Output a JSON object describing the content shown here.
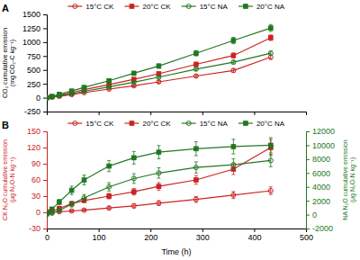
{
  "chart_data": [
    {
      "type": "line",
      "title": "A",
      "y_label": "CO₂ cumulative emission\n(mg CO₂-C kg⁻¹)",
      "x": [
        0,
        10,
        24,
        48,
        72,
        120,
        168,
        216,
        288,
        360,
        432
      ],
      "series": [
        {
          "name": "15°C CK",
          "color": "#cc2222",
          "marker": "open-circle",
          "values": [
            0,
            10,
            25,
            55,
            90,
            155,
            215,
            285,
            390,
            490,
            730
          ],
          "errors": [
            3,
            5,
            8,
            12,
            15,
            18,
            20,
            25,
            28,
            32,
            40
          ]
        },
        {
          "name": "20°C CK",
          "color": "#cc2222",
          "marker": "square",
          "values": [
            0,
            18,
            45,
            90,
            145,
            235,
            330,
            430,
            600,
            760,
            1080
          ],
          "errors": [
            3,
            7,
            10,
            15,
            18,
            22,
            28,
            32,
            38,
            45,
            50
          ]
        },
        {
          "name": "15°C NA",
          "color": "#227722",
          "marker": "open-circle",
          "values": [
            0,
            14,
            35,
            70,
            115,
            195,
            280,
            370,
            515,
            640,
            800
          ],
          "errors": [
            3,
            5,
            8,
            10,
            14,
            17,
            20,
            24,
            28,
            32,
            38
          ]
        },
        {
          "name": "20°C NA",
          "color": "#227722",
          "marker": "square",
          "values": [
            0,
            22,
            60,
            120,
            185,
            305,
            440,
            570,
            800,
            1030,
            1255
          ],
          "errors": [
            3,
            8,
            12,
            17,
            22,
            28,
            33,
            40,
            48,
            58,
            62
          ]
        }
      ],
      "xlim": [
        0,
        500
      ],
      "xticks": [
        0,
        100,
        200,
        300,
        400,
        500
      ],
      "ylim": [
        -250,
        1500
      ],
      "yticks": [
        -250,
        0,
        250,
        500,
        750,
        1000,
        1250,
        1500
      ],
      "legend": "top",
      "tick_labels": "y"
    },
    {
      "type": "line",
      "title": "B",
      "x_label": "Time (h)",
      "y_label": "CK N₂O cumulative emission\n(μg N₂O-N kg⁻¹)",
      "y2_label": "NA N₂O cumulative emission\n(μg N₂O-N kg⁻¹)",
      "x": [
        0,
        10,
        24,
        48,
        72,
        120,
        168,
        216,
        288,
        360,
        432
      ],
      "series": [
        {
          "name": "15°C CK",
          "color": "#cc2222",
          "marker": "open-circle",
          "values": [
            0,
            0.5,
            1.0,
            2.5,
            4.0,
            8.0,
            12.0,
            17.0,
            24.0,
            32.0,
            40.0
          ],
          "errors": [
            0.3,
            0.5,
            0.8,
            1.5,
            2.0,
            3.0,
            4.0,
            4.5,
            5.5,
            6.5,
            7.0
          ]
        },
        {
          "name": "20°C CK",
          "color": "#cc2222",
          "marker": "square",
          "values": [
            1,
            2.0,
            7.0,
            16.0,
            22.0,
            30.0,
            38.0,
            48.0,
            60.0,
            80.0,
            120.0
          ],
          "errors": [
            0.5,
            1.0,
            2.0,
            3.0,
            3.5,
            5.0,
            6.0,
            7.0,
            8.0,
            10.0,
            15.0
          ]
        },
        {
          "name": "15°C NA",
          "color": "#227722",
          "marker": "open-circle",
          "axis": "y2",
          "values": [
            0,
            200,
            600,
            1500,
            2400,
            4000,
            5200,
            6000,
            6800,
            7200,
            7800
          ],
          "errors": [
            50,
            150,
            250,
            400,
            500,
            600,
            700,
            750,
            800,
            850,
            900
          ]
        },
        {
          "name": "20°C NA",
          "color": "#227722",
          "marker": "square",
          "axis": "y2",
          "values": [
            200,
            800,
            1800,
            3500,
            5000,
            7000,
            8200,
            9000,
            9500,
            9800,
            10000
          ],
          "errors": [
            100,
            250,
            400,
            600,
            700,
            800,
            900,
            950,
            1000,
            1050,
            1100
          ]
        }
      ],
      "xlim": [
        0,
        500
      ],
      "xticks": [
        0,
        100,
        200,
        300,
        400,
        500
      ],
      "ylim": [
        -30,
        150
      ],
      "yticks": [
        -30,
        0,
        30,
        60,
        90,
        120,
        150
      ],
      "y2lim": [
        -2000,
        12000
      ],
      "y2ticks": [
        -2000,
        0,
        2000,
        4000,
        6000,
        8000,
        10000,
        12000
      ],
      "legend": "top"
    }
  ]
}
